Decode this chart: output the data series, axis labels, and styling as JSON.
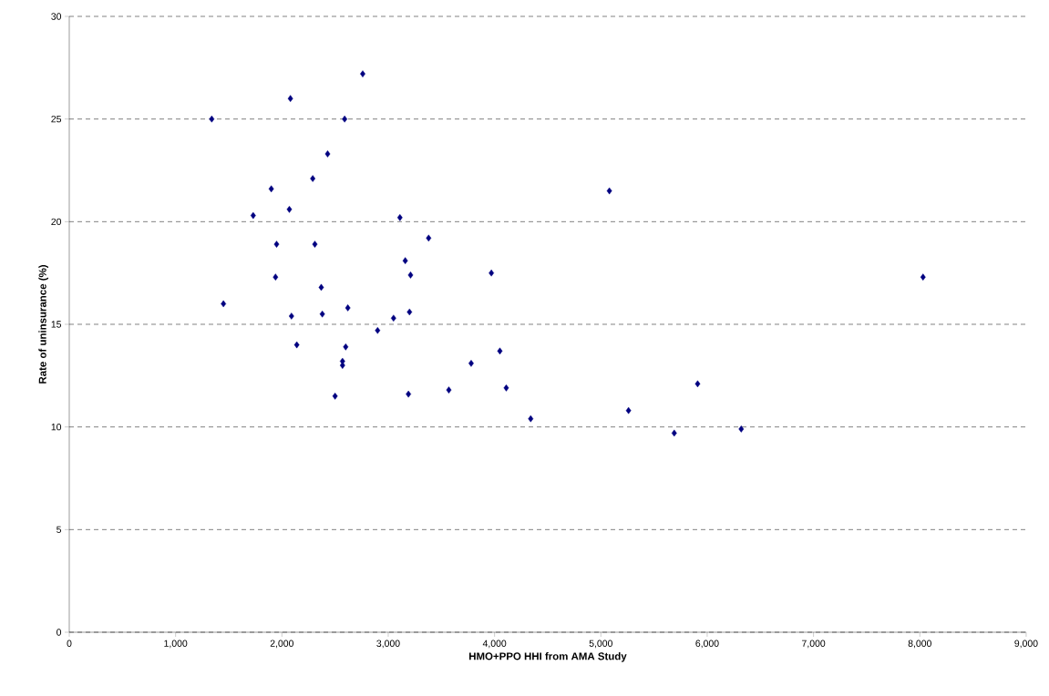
{
  "chart_data": {
    "type": "scatter",
    "xlabel": "HMO+PPO HHI from AMA Study",
    "ylabel": "Rate of uninsurance (%)",
    "xlim": [
      0,
      9000
    ],
    "xticks": [
      0,
      {
        "value": 1000,
        "label": "1,000"
      },
      {
        "value": 2000,
        "label": "2,000"
      },
      {
        "value": 3000,
        "label": "3,000"
      },
      {
        "value": 4000,
        "label": "4,000"
      },
      {
        "value": 5000,
        "label": "5,000"
      },
      {
        "value": 6000,
        "label": "6,000"
      },
      {
        "value": 7000,
        "label": "7,000"
      },
      {
        "value": 8000,
        "label": "8,000"
      },
      {
        "value": 9000,
        "label": "9,000"
      }
    ],
    "ylim": [
      0,
      30
    ],
    "yticks": [
      0,
      5,
      10,
      15,
      20,
      25,
      30
    ],
    "grid": "y",
    "marker": "diamond",
    "series": [
      {
        "color": "#000080",
        "x": [
          1340,
          1450,
          1730,
          1900,
          1940,
          1950,
          2070,
          2080,
          2090,
          2140,
          2290,
          2310,
          2370,
          2380,
          2430,
          2500,
          2570,
          2570,
          2590,
          2600,
          2620,
          2760,
          2900,
          3050,
          3110,
          3160,
          3190,
          3200,
          3210,
          3380,
          3570,
          3780,
          3970,
          4050,
          4110,
          4340,
          5080,
          5260,
          5690,
          5910,
          6320,
          8030
        ],
        "values": [
          25.0,
          16.0,
          20.3,
          21.6,
          17.3,
          18.9,
          20.6,
          26.0,
          15.4,
          14.0,
          22.1,
          18.9,
          16.8,
          15.5,
          23.3,
          11.5,
          13.2,
          13.0,
          25.0,
          13.9,
          15.8,
          27.2,
          14.7,
          15.3,
          20.2,
          18.1,
          11.6,
          15.6,
          17.4,
          19.2,
          11.8,
          13.1,
          17.5,
          13.7,
          11.9,
          10.4,
          21.5,
          10.8,
          9.7,
          12.1,
          9.9,
          17.3
        ]
      }
    ]
  }
}
